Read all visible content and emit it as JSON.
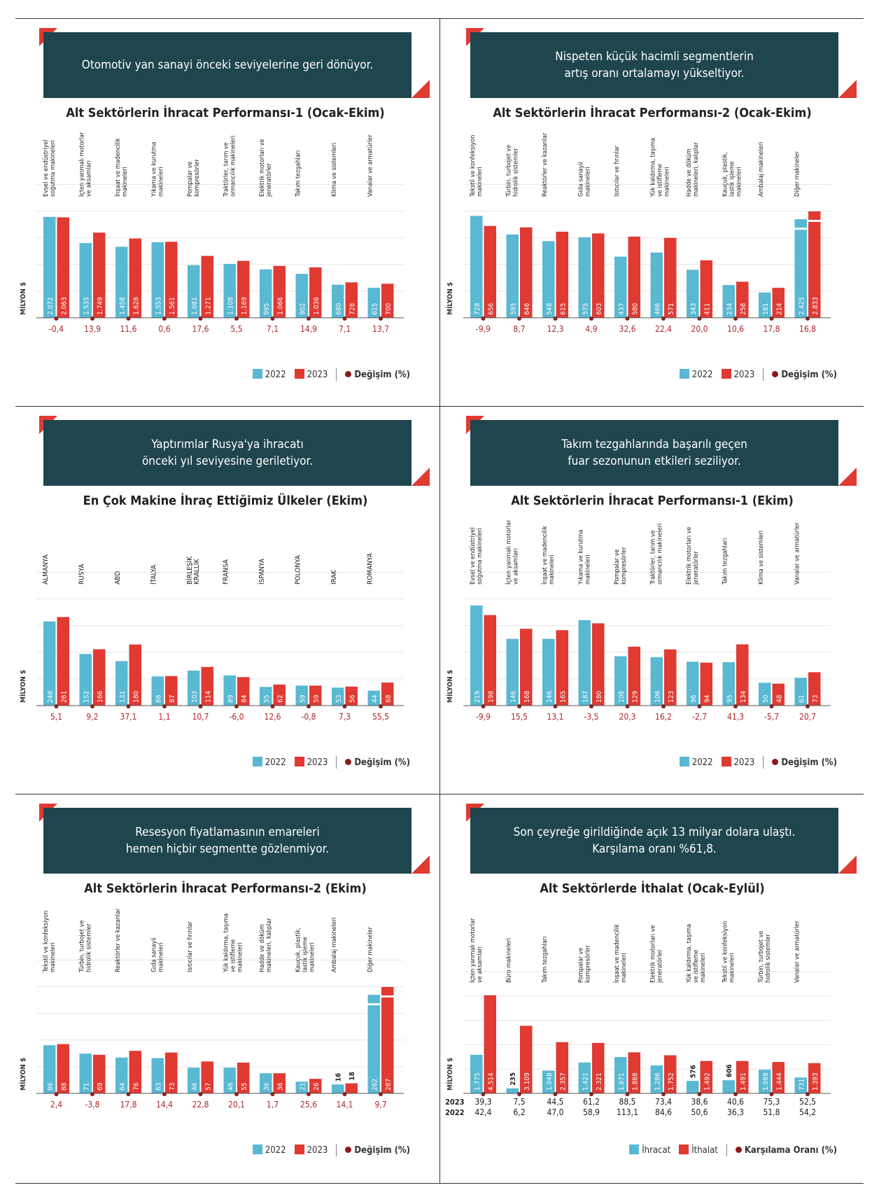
{
  "colors": {
    "c2022": "#59b8d2",
    "c2023": "#e03a32",
    "banner": "#1f454e",
    "dot": "#8b1a1a",
    "change": "#b0262a"
  },
  "legend": {
    "l2022": "2022",
    "l2023": "2023",
    "change": "Değişim (%)",
    "ihracat": "İhracat",
    "ithalat": "İthalat",
    "karsilama": "Karşılama Oranı (%)"
  },
  "panels": [
    {
      "banner": "Otomotiv yan sanayi önceki seviyelerine geri dönüyor.",
      "title": "Alt Sektörlerin İhracat Performansı-1 (Ocak-Ekim)"
    },
    {
      "banner": "Nispeten küçük hacimli segmentlerin\nartış oranı ortalamayı yükseltiyor.",
      "title": "Alt Sektörlerin İhracat Performansı-2 (Ocak-Ekim)"
    },
    {
      "banner": "Yaptırımlar Rusya'ya ihracatı\nönceki yıl seviyesine geriletiyor.",
      "title": "En Çok Makine İhraç Ettiğimiz Ülkeler (Ekim)"
    },
    {
      "banner": "Takım tezgahlarında başarılı geçen\nfuar sezonunun etkileri seziliyor.",
      "title": "Alt Sektörlerin İhracat Performansı-1 (Ekim)"
    },
    {
      "banner": "Resesyon fiyatlamasının emareleri\nhemen hiçbir segmentte gözlenmiyor.",
      "title": "Alt Sektörlerin İhracat Performansı-2 (Ekim)"
    },
    {
      "banner": "Son çeyreğe girildiğinde açık 13 milyar dolara ulaştı.\nKarşılama oranı %61,8.",
      "title": "Alt Sektörlerde İthalat (Ocak-Eylül)"
    }
  ],
  "chart_data": [
    {
      "type": "bar",
      "ylabel": "MİLYON $",
      "categories": [
        "Evsel ve endüstriyel soğutma makineleri",
        "İçten yanmalı motorlar ve aksamları",
        "İnşaat ve madencilik makineleri",
        "Yıkama ve kurutma makineleri",
        "Pompalar ve kompresörler",
        "Traktörler, tarım ve ormancılık makineleri",
        "Elektrik motorları ve jeneratörler",
        "Takım tezgahları",
        "Klima ve sistemleri",
        "Vanalar ve armatürler"
      ],
      "series": [
        {
          "name": "2022",
          "values": [
            2072,
            1535,
            1458,
            1553,
            1081,
            1108,
            995,
            902,
            680,
            615
          ],
          "labels": [
            "2.072",
            "1.535",
            "1.458",
            "1.553",
            "1.081",
            "1.108",
            "995",
            "902",
            "680",
            "615"
          ]
        },
        {
          "name": "2023",
          "values": [
            2063,
            1749,
            1628,
            1561,
            1271,
            1169,
            1066,
            1036,
            728,
            700
          ],
          "labels": [
            "2.063",
            "1.749",
            "1.628",
            "1.561",
            "1.271",
            "1.169",
            "1.066",
            "1.036",
            "728",
            "700"
          ]
        }
      ],
      "change": [
        "-0,4",
        "13,9",
        "11,6",
        "0,6",
        "17,6",
        "5,5",
        "7,1",
        "14,9",
        "7,1",
        "13,7"
      ],
      "ymax": 2300
    },
    {
      "type": "bar",
      "ylabel": "MİLYON $",
      "categories": [
        "Tekstil ve konfeksiyon makineleri",
        "Türbin, turbojet ve hidrolik sistemler",
        "Reaktörler ve kazanlar",
        "Gıda sanayii makineleri",
        "Isıtıcılar ve fırınlar",
        "Yük kaldırma, taşıma ve istifleme makineleri",
        "Hadde ve döküm makineleri, kalıplar",
        "Kauçuk, plastik, lastik işleme makineleri",
        "Ambalaj makineleri",
        "Diğer makineler"
      ],
      "series": [
        {
          "name": "2022",
          "values": [
            728,
            595,
            548,
            575,
            437,
            466,
            343,
            234,
            181,
            2425
          ],
          "labels": [
            "728",
            "595",
            "548",
            "575",
            "437",
            "466",
            "343",
            "234",
            "181",
            "2.425"
          ]
        },
        {
          "name": "2023",
          "values": [
            656,
            646,
            615,
            603,
            580,
            571,
            411,
            258,
            214,
            2833
          ],
          "labels": [
            "656",
            "646",
            "615",
            "603",
            "580",
            "571",
            "411",
            "258",
            "214",
            "2.833"
          ]
        }
      ],
      "change": [
        "-9,9",
        "8,7",
        "12,3",
        "4,9",
        "32,6",
        "22,4",
        "20,0",
        "10,6",
        "17,8",
        "16,8"
      ],
      "ymax": 800,
      "broken": [
        9
      ]
    },
    {
      "type": "bar",
      "ylabel": "MİLYON $",
      "categories": [
        "ALMANYA",
        "RUSYA",
        "ABD",
        "İTALYA",
        "BİRLEŞİK KRALLIK",
        "FRANSA",
        "İSPANYA",
        "POLONYA",
        "IRAK",
        "ROMANYA"
      ],
      "series": [
        {
          "name": "2022",
          "values": [
            248,
            152,
            131,
            86,
            103,
            89,
            55,
            59,
            53,
            44
          ],
          "labels": [
            "248",
            "152",
            "131",
            "86",
            "103",
            "89",
            "55",
            "59",
            "53",
            "44"
          ]
        },
        {
          "name": "2023",
          "values": [
            261,
            166,
            180,
            87,
            114,
            84,
            62,
            59,
            56,
            68
          ],
          "labels": [
            "261",
            "166",
            "180",
            "87",
            "114",
            "84",
            "62",
            "59",
            "56",
            "68"
          ]
        }
      ],
      "change": [
        "5,1",
        "9,2",
        "37,1",
        "1,1",
        "10,7",
        "-6,0",
        "12,6",
        "-0,8",
        "7,3",
        "55,5"
      ],
      "ymax": 330
    },
    {
      "type": "bar",
      "ylabel": "MİLYON $",
      "categories": [
        "Evsel ve endüstriyel soğutma makineleri",
        "İçten yanmalı motorlar ve aksamları",
        "İnşaat ve madencilik makineleri",
        "Yıkama ve kurutma makineleri",
        "Pompalar ve kompresörler",
        "Traktörler, tarım ve ormancılık makineleri",
        "Elektrik motorları ve jeneratörler",
        "Takım tezgahları",
        "Klima ve sistemleri",
        "Vanalar ve armatürler"
      ],
      "series": [
        {
          "name": "2022",
          "values": [
            219,
            146,
            146,
            187,
            108,
            106,
            96,
            95,
            50,
            61
          ],
          "labels": [
            "219",
            "146",
            "146",
            "187",
            "108",
            "106",
            "96",
            "95",
            "50",
            "61"
          ]
        },
        {
          "name": "2023",
          "values": [
            198,
            168,
            165,
            180,
            129,
            123,
            94,
            134,
            48,
            73
          ],
          "labels": [
            "198",
            "168",
            "165",
            "180",
            "129",
            "123",
            "94",
            "134",
            "48",
            "73"
          ]
        }
      ],
      "change": [
        "-9,9",
        "15,5",
        "13,1",
        "-3,5",
        "20,3",
        "16,2",
        "-2,7",
        "41,3",
        "-5,7",
        "20,7"
      ],
      "ymax": 245
    },
    {
      "type": "bar",
      "ylabel": "MİLYON $",
      "categories": [
        "Tekstil ve konfeksiyon makineleri",
        "Türbin, turbojet ve hidrolik sistemler",
        "Reaktörler ve kazanlar",
        "Gıda sanayii makineleri",
        "Isıtıcılar ve fırınlar",
        "Yük kaldırma, taşıma ve istifleme makineleri",
        "Hadde ve döküm makineleri, kalıplar",
        "Kauçuk, plastik, lastik işleme makineleri",
        "Ambalaj makineleri",
        "Diğer makineler"
      ],
      "series": [
        {
          "name": "2022",
          "values": [
            86,
            71,
            64,
            63,
            46,
            46,
            36,
            21,
            16,
            262
          ],
          "labels": [
            "86",
            "71",
            "64",
            "63",
            "46",
            "46",
            "36",
            "21",
            "16",
            "262"
          ]
        },
        {
          "name": "2023",
          "values": [
            88,
            69,
            76,
            73,
            57,
            55,
            36,
            26,
            18,
            287
          ],
          "labels": [
            "88",
            "69",
            "76",
            "73",
            "57",
            "55",
            "36",
            "26",
            "18",
            "287"
          ]
        }
      ],
      "change": [
        "2,4",
        "-3,8",
        "17,8",
        "14,4",
        "22,8",
        "20,1",
        "1,7",
        "25,6",
        "14,1",
        "9,7"
      ],
      "ymax": 200,
      "broken": [
        9
      ],
      "outside": [
        8
      ]
    },
    {
      "type": "bar",
      "ylabel": "MİLYON $",
      "categories": [
        "İçten yanmalı motorlar ve aksamları",
        "Büro makineleri",
        "Takım tezgahları",
        "Pompalar ve kompresörler",
        "İnşaat ve madencilik makineleri",
        "Elektrik motorları ve jeneratörler",
        "Yük kaldırma, taşıma ve istifleme makineleri",
        "Tekstil ve konfeksiyon makineleri",
        "Türbin, turbojet ve hidrolik sistemler",
        "Vanalar ve armatürler"
      ],
      "series": [
        {
          "name": "İhracat",
          "values": [
            1775,
            235,
            1048,
            1421,
            1671,
            1286,
            576,
            606,
            1088,
            731
          ],
          "labels": [
            "1.775",
            "235",
            "1.048",
            "1.421",
            "1.671",
            "1.286",
            "576",
            "606",
            "1.088",
            "731"
          ]
        },
        {
          "name": "İthalat",
          "values": [
            4514,
            3109,
            2357,
            2321,
            1888,
            1752,
            1492,
            1491,
            1444,
            1393
          ],
          "labels": [
            "4.514",
            "3.109",
            "2.357",
            "2.321",
            "1.888",
            "1.752",
            "1.492",
            "1.491",
            "1.444",
            "1.393"
          ]
        }
      ],
      "outside": [
        1,
        6,
        7
      ],
      "ratio_rows": [
        {
          "label": "2023",
          "values": [
            "39,3",
            "7,5",
            "44,5",
            "61,2",
            "88,5",
            "73,4",
            "38,6",
            "40,6",
            "75,3",
            "52,5"
          ]
        },
        {
          "label": "2022",
          "values": [
            "42,4",
            "6,2",
            "47,0",
            "58,9",
            "113,1",
            "84,6",
            "50,6",
            "36,3",
            "51,8",
            "54,2"
          ]
        }
      ],
      "ymax": 4700
    }
  ]
}
